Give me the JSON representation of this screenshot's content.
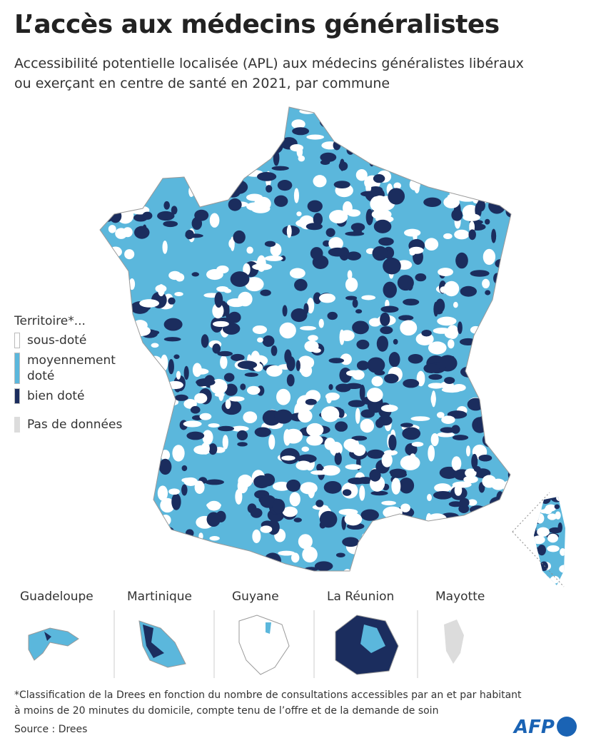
{
  "header": {
    "title": "L’accès aux médecins généralistes",
    "subtitle_lines": [
      "Accessibilité potentielle localisée (APL) aux médecins généralistes libéraux",
      "ou exerçant en centre de santé en 2021, par commune"
    ]
  },
  "legend": {
    "title": "Territoire*...",
    "items": [
      {
        "label": "sous-doté",
        "color": "#ffffff"
      },
      {
        "label": "moyennement doté",
        "color": "#5bb7dc"
      },
      {
        "label": "bien doté",
        "color": "#1b2d5e"
      }
    ],
    "no_data": {
      "label": "Pas de données",
      "color": "#dcdcdc"
    }
  },
  "insets": [
    "Guadeloupe",
    "Martinique",
    "Guyane",
    "La Réunion",
    "Mayotte"
  ],
  "footer": {
    "note_lines": [
      "*Classification de la Drees en fonction du nombre de consultations accessibles par an et par habitant",
      "à moins de 20 minutes du domicile, compte tenu de l’offre et de la demande de soin"
    ],
    "source": "Source : Drees",
    "logo": "AFP"
  }
}
